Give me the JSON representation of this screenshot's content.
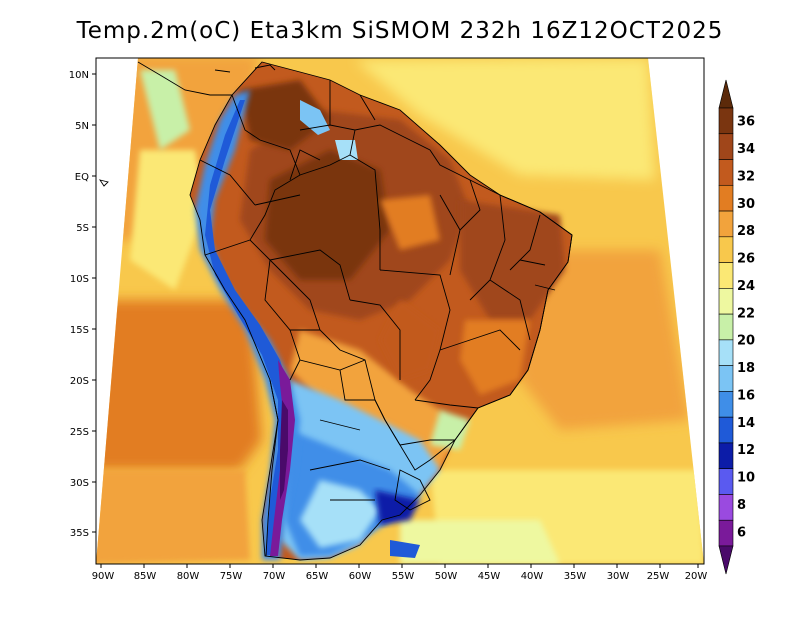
{
  "title": "Temp.2m(oC) Eta3km SiSMOM 232h 16Z12OCT2025",
  "map": {
    "lat_labels": [
      "10N",
      "5N",
      "EQ",
      "5S",
      "10S",
      "15S",
      "20S",
      "25S",
      "30S",
      "35S"
    ],
    "lon_labels": [
      "90W",
      "85W",
      "80W",
      "75W",
      "70W",
      "65W",
      "60W",
      "55W",
      "50W",
      "45W",
      "40W",
      "35W",
      "30W",
      "25W",
      "20W"
    ]
  },
  "colorbar": {
    "labels": [
      "36",
      "34",
      "32",
      "30",
      "28",
      "26",
      "24",
      "22",
      "20",
      "18",
      "16",
      "14",
      "12",
      "10",
      "8",
      "6"
    ],
    "colors": [
      "#5c2a0a",
      "#7a3510",
      "#a0461a",
      "#c25a1e",
      "#e27d22",
      "#f2a33c",
      "#f8c84c",
      "#fbe874",
      "#eef8a0",
      "#c8f0a8",
      "#a6e0f8",
      "#7bc4f4",
      "#3f8ee8",
      "#1f5ad8",
      "#0c1ca8",
      "#5a5af0",
      "#9a4ae0",
      "#7a1a9a",
      "#4a0a6a"
    ]
  }
}
